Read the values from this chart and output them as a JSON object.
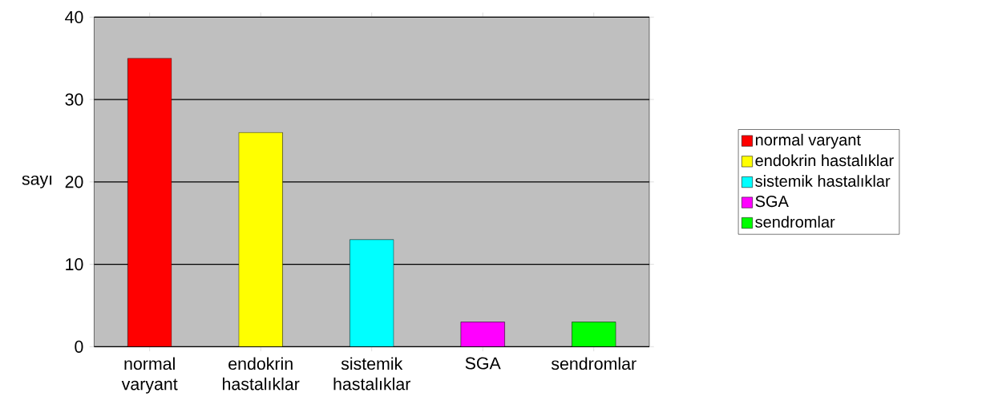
{
  "chart_data": {
    "type": "bar",
    "ylabel": "sayı",
    "categories": [
      "normal varyant",
      "endokrin hastalıklar",
      "sistemik hastalıklar",
      "SGA",
      "sendromlar"
    ],
    "series": [
      {
        "name": "normal varyant",
        "color": "#ff0000",
        "values": [
          35,
          null,
          null,
          null,
          null
        ]
      },
      {
        "name": "endokrin hastalıklar",
        "color": "#ffff00",
        "values": [
          null,
          26,
          null,
          null,
          null
        ]
      },
      {
        "name": "sistemik hastalıklar",
        "color": "#00ffff",
        "values": [
          null,
          null,
          13,
          null,
          null
        ]
      },
      {
        "name": "SGA",
        "color": "#ff00ff",
        "values": [
          null,
          null,
          null,
          3,
          null
        ]
      },
      {
        "name": "sendromlar",
        "color": "#00ff00",
        "values": [
          null,
          null,
          null,
          null,
          3
        ]
      }
    ],
    "ylim": [
      0,
      40
    ],
    "yticks": [
      0,
      10,
      20,
      30,
      40
    ],
    "grid": "y",
    "legend": "right"
  }
}
